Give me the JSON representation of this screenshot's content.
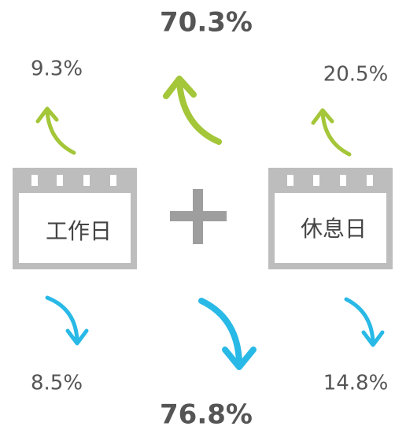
{
  "top": {
    "total": "70.3%",
    "left": "9.3%",
    "right": "20.5%"
  },
  "bottom": {
    "total": "76.8%",
    "left": "8.5%",
    "right": "14.8%"
  },
  "calendars": [
    "工作日",
    "休息日"
  ]
}
